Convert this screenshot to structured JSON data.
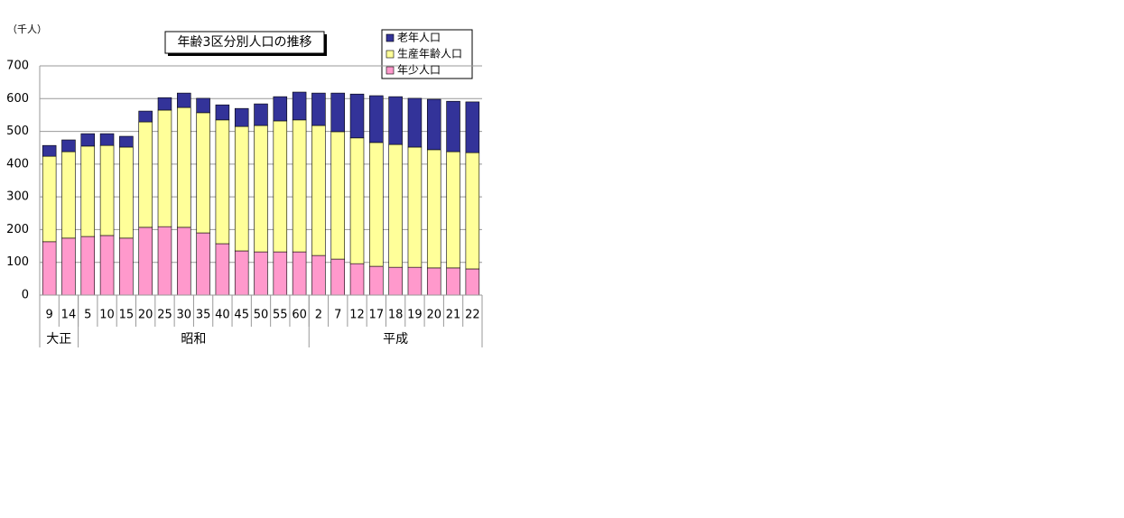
{
  "chart_data": {
    "type": "stacked_bar",
    "title": "年齢3区分別人口の推移",
    "y_label": "（千人）",
    "groups": [
      {
        "name": "大正",
        "categories": [
          "9",
          "14"
        ]
      },
      {
        "name": "昭和",
        "categories": [
          "5",
          "10",
          "15",
          "20",
          "25",
          "30",
          "35",
          "40",
          "45",
          "50",
          "55",
          "60"
        ]
      },
      {
        "name": "平成",
        "categories": [
          "2",
          "7",
          "12",
          "17",
          "18",
          "19",
          "20",
          "21",
          "22"
        ]
      }
    ],
    "series": [
      {
        "name": "年少人口",
        "color": "#ff99cc",
        "values": [
          163,
          174,
          179,
          182,
          174,
          207,
          209,
          207,
          190,
          157,
          135,
          132,
          132,
          132,
          121,
          110,
          96,
          88,
          85,
          85,
          83,
          83,
          80
        ]
      },
      {
        "name": "生産年齢人口",
        "color": "#ffff99",
        "values": [
          261,
          264,
          276,
          275,
          278,
          322,
          356,
          366,
          367,
          378,
          380,
          386,
          400,
          403,
          397,
          389,
          384,
          378,
          375,
          367,
          361,
          355,
          355
        ]
      },
      {
        "name": "老年人口",
        "color": "#333399",
        "values": [
          33,
          36,
          38,
          36,
          33,
          33,
          38,
          44,
          44,
          46,
          55,
          66,
          74,
          85,
          99,
          118,
          134,
          143,
          146,
          149,
          154,
          154,
          155
        ]
      }
    ],
    "ylim": [
      0,
      700
    ],
    "yticks": [
      0,
      100,
      200,
      300,
      400,
      500,
      600,
      700
    ],
    "grid": true,
    "legend": "top-right"
  }
}
